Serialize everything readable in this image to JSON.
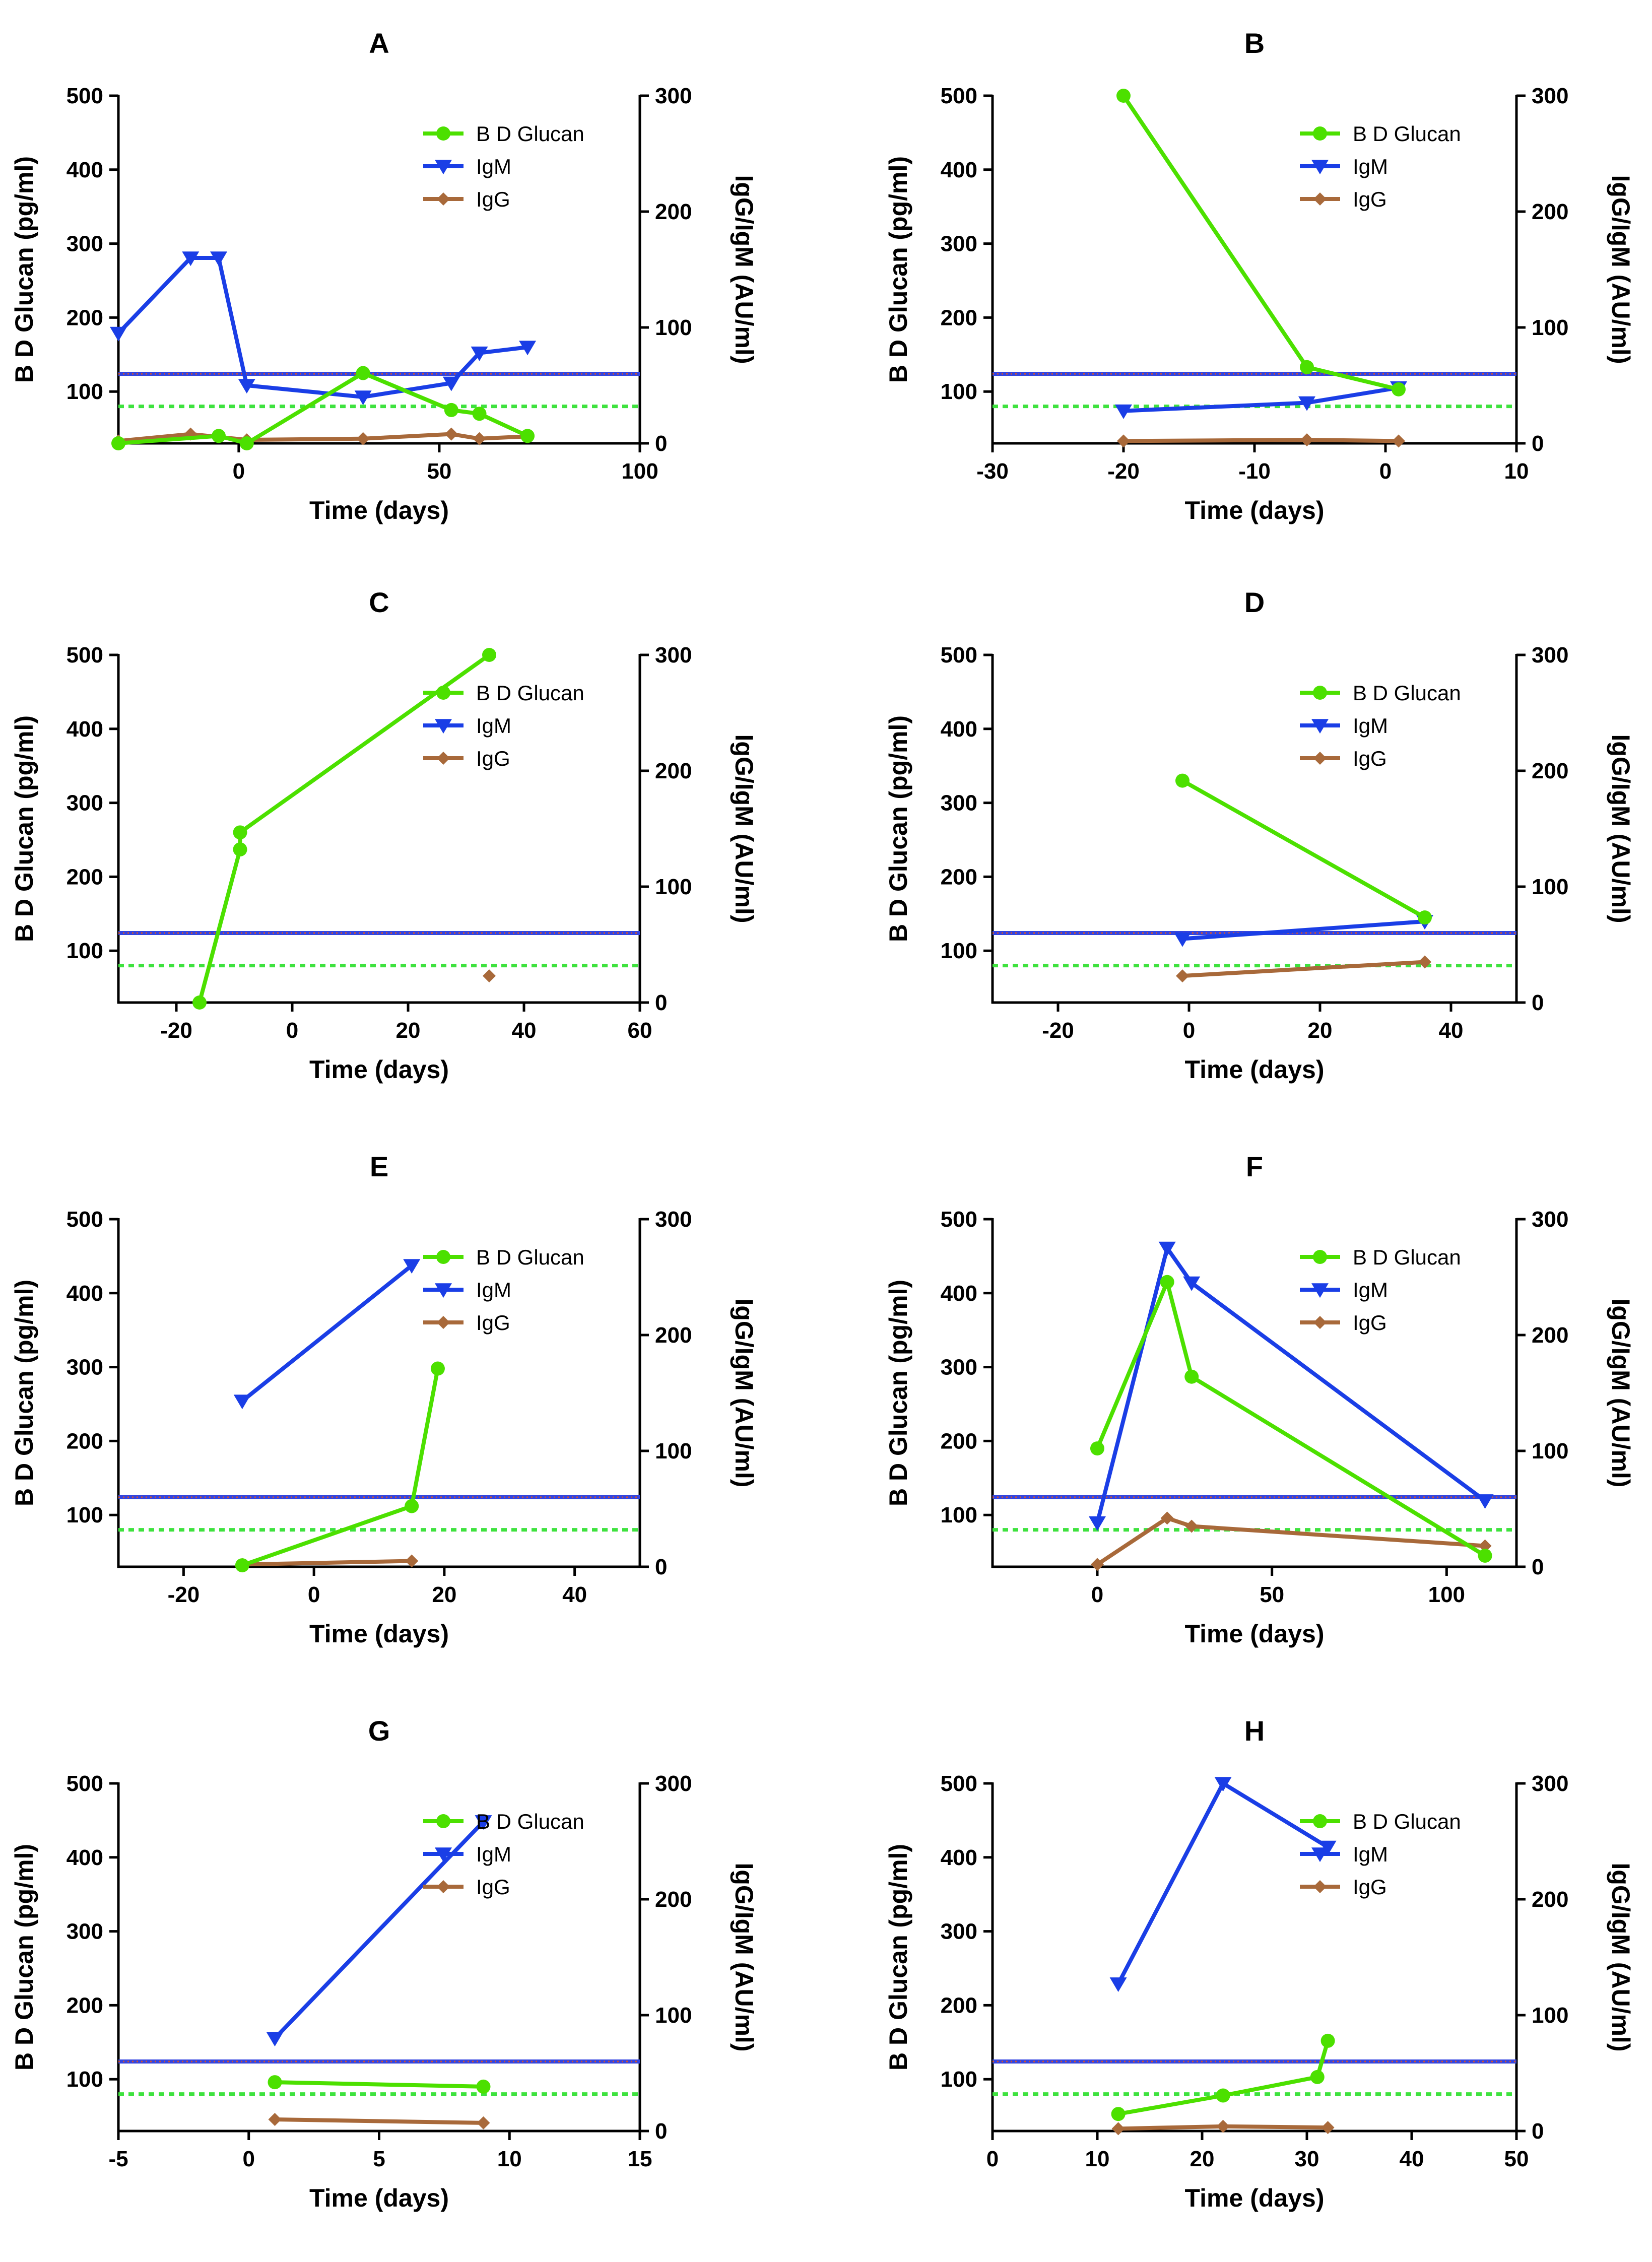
{
  "figure_title": "",
  "colors": {
    "glucan": "#4CE000",
    "igm": "#1A3EE6",
    "igg": "#A8693A",
    "cutoff_glucan": "#3EE23E",
    "cutoff_ig": "#3244E0",
    "cutoff_ig_dots": "#D2532F",
    "axis": "#000000"
  },
  "chart_data": [
    {
      "panel": "A",
      "type": "line",
      "xlabel": "Time (days)",
      "ylabel": "B D Glucan (pg/ml)",
      "y2label": "IgG/IgM (AU/ml)",
      "xlim": [
        -30,
        100
      ],
      "ylim": [
        30,
        500
      ],
      "y2lim": [
        0,
        300
      ],
      "xticks": [
        0,
        50,
        100
      ],
      "yticks": [
        100,
        200,
        300,
        400,
        500
      ],
      "y2ticks": [
        0,
        100,
        200,
        300
      ],
      "legend": [
        "B D Glucan",
        "IgM",
        "IgG"
      ],
      "cutoff_glucan": 80,
      "cutoff_ig": 60,
      "series": [
        {
          "name": "B D Glucan",
          "axis": "left",
          "marker": "circle",
          "x": [
            -30,
            -5,
            2,
            31,
            53,
            60,
            72
          ],
          "y": [
            30,
            40,
            30,
            125,
            75,
            70,
            40
          ]
        },
        {
          "name": "IgM",
          "axis": "right",
          "marker": "triangle-down",
          "x": [
            -30,
            -12,
            -5,
            2,
            31,
            53,
            60,
            72
          ],
          "y": [
            95,
            160,
            160,
            50,
            40,
            52,
            78,
            83
          ]
        },
        {
          "name": "IgG",
          "axis": "right",
          "marker": "diamond",
          "x": [
            -30,
            -12,
            2,
            31,
            53,
            60,
            72
          ],
          "y": [
            2,
            8,
            3,
            4,
            8,
            4,
            6
          ]
        }
      ]
    },
    {
      "panel": "B",
      "type": "line",
      "xlabel": "Time (days)",
      "ylabel": "B D Glucan (pg/ml)",
      "y2label": "IgG/IgM (AU/ml)",
      "xlim": [
        -30,
        10
      ],
      "ylim": [
        30,
        500
      ],
      "y2lim": [
        0,
        300
      ],
      "xticks": [
        -30,
        -20,
        -10,
        0,
        10
      ],
      "yticks": [
        100,
        200,
        300,
        400,
        500
      ],
      "y2ticks": [
        0,
        100,
        200,
        300
      ],
      "legend": [
        "B D Glucan",
        "IgM",
        "IgG"
      ],
      "cutoff_glucan": 80,
      "cutoff_ig": 60,
      "series": [
        {
          "name": "B D Glucan",
          "axis": "left",
          "marker": "circle",
          "x": [
            -20,
            -6,
            1
          ],
          "y": [
            500,
            133,
            103
          ]
        },
        {
          "name": "IgM",
          "axis": "right",
          "marker": "triangle-down",
          "x": [
            -20,
            -6,
            1
          ],
          "y": [
            28,
            35,
            48
          ]
        },
        {
          "name": "IgG",
          "axis": "right",
          "marker": "diamond",
          "x": [
            -20,
            -6,
            1
          ],
          "y": [
            2,
            3,
            2
          ]
        }
      ]
    },
    {
      "panel": "C",
      "type": "line",
      "xlabel": "Time (days)",
      "ylabel": "B D Glucan (pg/ml)",
      "y2label": "IgG/IgM (AU/ml)",
      "xlim": [
        -30,
        60
      ],
      "ylim": [
        30,
        500
      ],
      "y2lim": [
        0,
        300
      ],
      "xticks": [
        -20,
        0,
        20,
        40,
        60
      ],
      "yticks": [
        100,
        200,
        300,
        400,
        500
      ],
      "y2ticks": [
        0,
        100,
        200,
        300
      ],
      "legend": [
        "B D Glucan",
        "IgM",
        "IgG"
      ],
      "cutoff_glucan": 80,
      "cutoff_ig": 60,
      "series": [
        {
          "name": "B D Glucan",
          "axis": "left",
          "marker": "circle",
          "x": [
            -16,
            -9,
            -9,
            34
          ],
          "y": [
            30,
            237,
            260,
            500
          ]
        },
        {
          "name": "IgM",
          "axis": "right",
          "marker": "triangle-down",
          "x": [],
          "y": []
        },
        {
          "name": "IgG",
          "axis": "right",
          "marker": "diamond",
          "x": [
            34
          ],
          "y": [
            23
          ]
        }
      ]
    },
    {
      "panel": "D",
      "type": "line",
      "xlabel": "Time (days)",
      "ylabel": "B D Glucan (pg/ml)",
      "y2label": "IgG/IgM (AU/ml)",
      "xlim": [
        -30,
        50
      ],
      "ylim": [
        30,
        500
      ],
      "y2lim": [
        0,
        300
      ],
      "xticks": [
        -20,
        0,
        20,
        40
      ],
      "yticks": [
        100,
        200,
        300,
        400,
        500
      ],
      "y2ticks": [
        0,
        100,
        200,
        300
      ],
      "legend": [
        "B D Glucan",
        "IgM",
        "IgG"
      ],
      "cutoff_glucan": 80,
      "cutoff_ig": 60,
      "series": [
        {
          "name": "B D Glucan",
          "axis": "left",
          "marker": "circle",
          "x": [
            -1,
            36
          ],
          "y": [
            330,
            145
          ]
        },
        {
          "name": "IgM",
          "axis": "right",
          "marker": "triangle-down",
          "x": [
            -1,
            36
          ],
          "y": [
            55,
            70
          ]
        },
        {
          "name": "IgG",
          "axis": "right",
          "marker": "diamond",
          "x": [
            -1,
            36
          ],
          "y": [
            23,
            35
          ]
        }
      ]
    },
    {
      "panel": "E",
      "type": "line",
      "xlabel": "Time (days)",
      "ylabel": "B D Glucan (pg/ml)",
      "y2label": "IgG/IgM (AU/ml)",
      "xlim": [
        -30,
        50
      ],
      "ylim": [
        30,
        500
      ],
      "y2lim": [
        0,
        300
      ],
      "xticks": [
        -20,
        0,
        20,
        40
      ],
      "yticks": [
        100,
        200,
        300,
        400,
        500
      ],
      "y2ticks": [
        0,
        100,
        200,
        300
      ],
      "legend": [
        "B D Glucan",
        "IgM",
        "IgG"
      ],
      "cutoff_glucan": 80,
      "cutoff_ig": 60,
      "series": [
        {
          "name": "B D Glucan",
          "axis": "left",
          "marker": "circle",
          "x": [
            -11,
            15,
            19
          ],
          "y": [
            32,
            112,
            298
          ]
        },
        {
          "name": "IgM",
          "axis": "right",
          "marker": "triangle-down",
          "x": [
            -11,
            15
          ],
          "y": [
            143,
            260
          ]
        },
        {
          "name": "IgG",
          "axis": "right",
          "marker": "diamond",
          "x": [
            -11,
            15
          ],
          "y": [
            2,
            5
          ]
        }
      ]
    },
    {
      "panel": "F",
      "type": "line",
      "xlabel": "Time (days)",
      "ylabel": "B D Glucan (pg/ml)",
      "y2label": "IgG/IgM (AU/ml)",
      "xlim": [
        -30,
        120
      ],
      "ylim": [
        30,
        500
      ],
      "y2lim": [
        0,
        300
      ],
      "xticks": [
        0,
        50,
        100
      ],
      "yticks": [
        100,
        200,
        300,
        400,
        500
      ],
      "y2ticks": [
        0,
        100,
        200,
        300
      ],
      "legend": [
        "B D Glucan",
        "IgM",
        "IgG"
      ],
      "cutoff_glucan": 80,
      "cutoff_ig": 60,
      "series": [
        {
          "name": "B D Glucan",
          "axis": "left",
          "marker": "circle",
          "x": [
            0,
            20,
            27,
            111
          ],
          "y": [
            190,
            415,
            287,
            45
          ]
        },
        {
          "name": "IgM",
          "axis": "right",
          "marker": "triangle-down",
          "x": [
            0,
            20,
            27,
            111
          ],
          "y": [
            38,
            275,
            245,
            57
          ]
        },
        {
          "name": "IgG",
          "axis": "right",
          "marker": "diamond",
          "x": [
            0,
            20,
            27,
            111
          ],
          "y": [
            2,
            42,
            35,
            18
          ]
        }
      ]
    },
    {
      "panel": "G",
      "type": "line",
      "xlabel": "Time (days)",
      "ylabel": "B D Glucan (pg/ml)",
      "y2label": "IgG/IgM (AU/ml)",
      "xlim": [
        -5,
        15
      ],
      "ylim": [
        30,
        500
      ],
      "y2lim": [
        0,
        300
      ],
      "xticks": [
        -5,
        0,
        5,
        10,
        15
      ],
      "yticks": [
        100,
        200,
        300,
        400,
        500
      ],
      "y2ticks": [
        0,
        100,
        200,
        300
      ],
      "legend": [
        "B D Glucan",
        "IgM",
        "IgG"
      ],
      "cutoff_glucan": 80,
      "cutoff_ig": 60,
      "series": [
        {
          "name": "B D Glucan",
          "axis": "left",
          "marker": "circle",
          "x": [
            1,
            9
          ],
          "y": [
            96,
            90
          ]
        },
        {
          "name": "IgM",
          "axis": "right",
          "marker": "triangle-down",
          "x": [
            1,
            9
          ],
          "y": [
            80,
            267
          ]
        },
        {
          "name": "IgG",
          "axis": "right",
          "marker": "diamond",
          "x": [
            1,
            9
          ],
          "y": [
            10,
            7
          ]
        }
      ]
    },
    {
      "panel": "H",
      "type": "line",
      "xlabel": "Time (days)",
      "ylabel": "B D Glucan (pg/ml)",
      "y2label": "IgG/IgM (AU/ml)",
      "xlim": [
        0,
        50
      ],
      "ylim": [
        30,
        500
      ],
      "y2lim": [
        0,
        300
      ],
      "xticks": [
        0,
        10,
        20,
        30,
        40,
        50
      ],
      "yticks": [
        100,
        200,
        300,
        400,
        500
      ],
      "y2ticks": [
        0,
        100,
        200,
        300
      ],
      "legend": [
        "B D Glucan",
        "IgM",
        "IgG"
      ],
      "cutoff_glucan": 80,
      "cutoff_ig": 60,
      "series": [
        {
          "name": "B D Glucan",
          "axis": "left",
          "marker": "circle",
          "x": [
            12,
            22,
            31,
            32
          ],
          "y": [
            53,
            78,
            103,
            152
          ]
        },
        {
          "name": "IgM",
          "axis": "right",
          "marker": "triangle-down",
          "x": [
            12,
            22,
            32
          ],
          "y": [
            127,
            300,
            245
          ]
        },
        {
          "name": "IgG",
          "axis": "right",
          "marker": "diamond",
          "x": [
            12,
            22,
            32
          ],
          "y": [
            2,
            4,
            3
          ]
        }
      ]
    }
  ]
}
